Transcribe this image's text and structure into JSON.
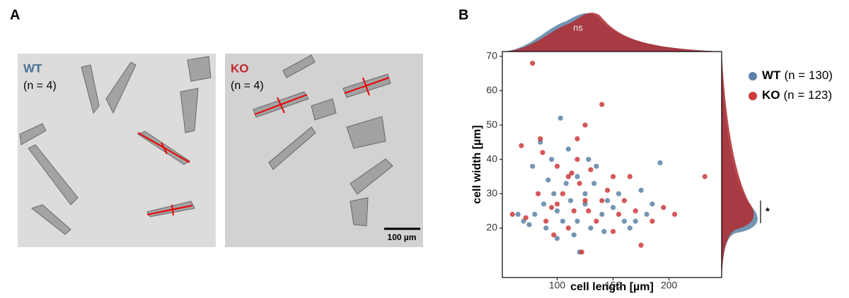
{
  "panel_labels": [
    "A",
    "B"
  ],
  "panel_a": {
    "images": [
      {
        "group": "WT",
        "n_label": "(n = 4)",
        "color": "#4a7196"
      },
      {
        "group": "KO",
        "n_label": "(n = 4)",
        "color": "#c0282d"
      }
    ],
    "scale_bar": "100 µm"
  },
  "chart_data": {
    "type": "scatter",
    "x_label": "cell length [µm]",
    "y_label": "cell width [µm]",
    "xlim": [
      51,
      247
    ],
    "ylim": [
      5.6,
      71.4
    ],
    "xticks": [
      100,
      150,
      200
    ],
    "yticks": [
      20,
      30,
      40,
      50,
      60,
      70
    ],
    "annotations": {
      "top": "ns",
      "right": "*"
    },
    "series": [
      {
        "name": "WT",
        "n_label": "(n = 130)",
        "color": "#5b82a6",
        "x": [
          78,
          85,
          95,
          103,
          110,
          118,
          125,
          135,
          145,
          160,
          175,
          192,
          185,
          170,
          100,
          105,
          90,
          80,
          70,
          65,
          120,
          115,
          130,
          140,
          150,
          97,
          108,
          125,
          88,
          112,
          133,
          155,
          75,
          100,
          118,
          142,
          165,
          180,
          128,
          92
        ],
        "values": [
          38,
          45,
          40,
          52,
          43,
          35,
          30,
          38,
          28,
          22,
          31,
          39,
          27,
          22,
          25,
          22,
          20,
          24,
          22,
          24,
          13,
          18,
          20,
          24,
          26,
          30,
          33,
          27,
          27,
          28,
          33,
          30,
          21,
          17,
          22,
          19,
          20,
          24,
          40,
          34
        ]
      },
      {
        "name": "KO",
        "n_label": "(n = 123)",
        "color": "#cc3a3c",
        "x": [
          78,
          125,
          140,
          118,
          85,
          87,
          68,
          100,
          110,
          130,
          150,
          165,
          232,
          205,
          195,
          175,
          122,
          60,
          72,
          95,
          105,
          115,
          125,
          135,
          145,
          160,
          110,
          100,
          90,
          120,
          140,
          155,
          128,
          113,
          83,
          97,
          150,
          170,
          185,
          118
        ],
        "values": [
          68,
          50,
          56,
          46,
          46,
          42,
          44,
          38,
          35,
          37,
          35,
          35,
          35,
          24,
          26,
          15,
          13,
          24,
          23,
          26,
          30,
          25,
          28,
          22,
          31,
          28,
          20,
          27,
          22,
          33,
          28,
          24,
          25,
          36,
          30,
          18,
          19,
          25,
          22,
          40
        ]
      }
    ]
  }
}
